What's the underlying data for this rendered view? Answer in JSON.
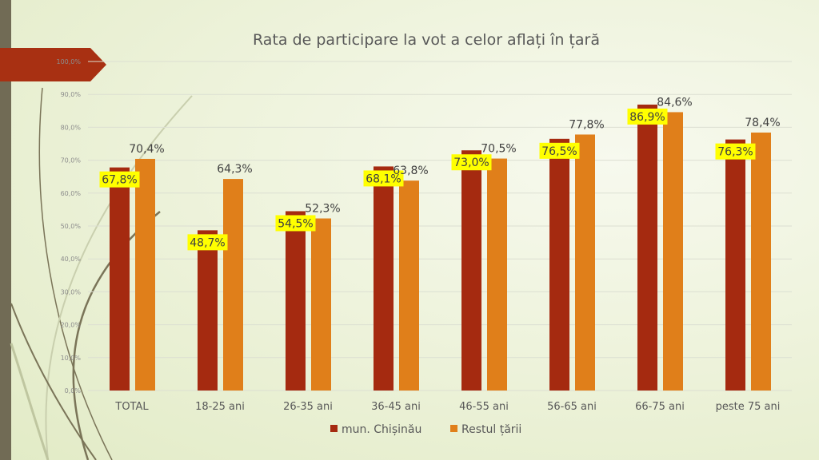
{
  "chart_data": {
    "type": "bar",
    "title": "Rata de participare la vot a celor aflați în țară",
    "xlabel": "",
    "ylabel": "",
    "ylim": [
      0,
      100
    ],
    "yticks": [
      "0,0%",
      "10,0%",
      "20,0%",
      "30,0%",
      "40,0%",
      "50,0%",
      "60,0%",
      "70,0%",
      "80,0%",
      "90,0%",
      "100,0%"
    ],
    "grid": true,
    "legend_position": "bottom",
    "categories": [
      "TOTAL",
      "18-25 ani",
      "26-35 ani",
      "36-45 ani",
      "46-55 ani",
      "56-65 ani",
      "66-75 ani",
      "peste 75 ani"
    ],
    "series": [
      {
        "name": "mun. Chișinău",
        "color": "#a52a10",
        "label_highlight": "#ffff00",
        "values": [
          67.8,
          48.7,
          54.5,
          68.1,
          73.0,
          76.5,
          86.9,
          76.3
        ],
        "labels": [
          "67,8%",
          "48,7%",
          "54,5%",
          "68,1%",
          "73,0%",
          "76,5%",
          "86,9%",
          "76,3%"
        ]
      },
      {
        "name": "Restul țării",
        "color": "#e07f1a",
        "values": [
          70.4,
          64.3,
          52.3,
          63.8,
          70.5,
          77.8,
          84.6,
          78.4
        ],
        "labels": [
          "70,4%",
          "64,3%",
          "52,3%",
          "63,8%",
          "70,5%",
          "77,8%",
          "84,6%",
          "78,4%"
        ]
      }
    ]
  },
  "theme": {
    "strip_color": "#716b55",
    "banner_color": "#a83012"
  }
}
